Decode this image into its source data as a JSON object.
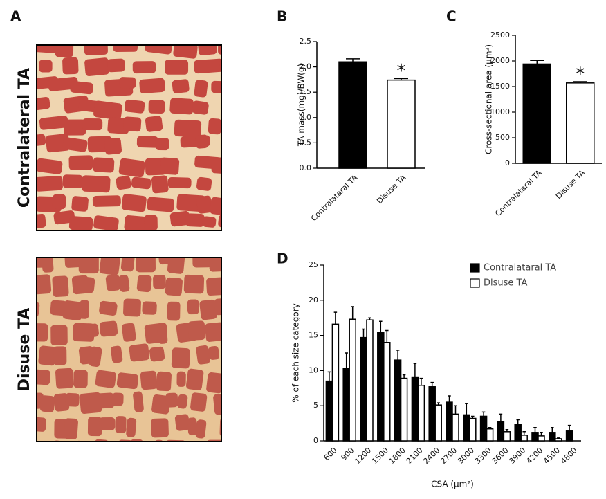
{
  "panel_a": {
    "title": "A",
    "images": [
      {
        "label": "Contralateral TA"
      },
      {
        "label": "Disuse TA"
      }
    ]
  },
  "chart_data": [
    {
      "type": "bar",
      "title": "B",
      "y_label": "TA mass(mg)/BW(g)",
      "categories": [
        "Contralataral TA",
        "Disuse TA"
      ],
      "values": [
        2.1,
        1.74
      ],
      "errors": [
        0.06,
        0.03
      ],
      "colors": [
        "#000000",
        "#ffffff"
      ],
      "annotation": "*",
      "ylim": [
        0,
        2.5
      ],
      "yticks": [
        {
          "value": 0,
          "label": "0.0"
        },
        0.5,
        {
          "value": 1,
          "label": "1.0"
        },
        1.5,
        {
          "value": 2,
          "label": "2.0"
        },
        2.5
      ]
    },
    {
      "type": "bar",
      "title": "C",
      "y_label": "Cross-sectional area (μm²)",
      "categories": [
        "Contralataral TA",
        "Disuse TA"
      ],
      "values": [
        1940,
        1570
      ],
      "errors": [
        70,
        25
      ],
      "colors": [
        "#000000",
        "#ffffff"
      ],
      "annotation": "*",
      "ylim": [
        0,
        2500
      ],
      "yticks": [
        0,
        500,
        1000,
        1500,
        2000,
        2500
      ]
    },
    {
      "type": "grouped_bar",
      "title": "D",
      "y_label": "% of each size category",
      "x_label": "CSA (μm²)",
      "categories": [
        "600",
        "900",
        "1200",
        "1500",
        "1800",
        "2100",
        "2400",
        "2700",
        "3000",
        "3300",
        "3600",
        "3900",
        "4200",
        "4500",
        "4800"
      ],
      "series": [
        {
          "name": "Contralataral TA",
          "color": "#000000",
          "values": [
            8.5,
            10.3,
            14.7,
            15.4,
            11.5,
            9.0,
            7.7,
            5.5,
            3.7,
            3.5,
            2.7,
            2.3,
            1.2,
            1.2,
            1.4
          ],
          "errors": [
            1.3,
            2.2,
            1.2,
            1.6,
            1.4,
            2.0,
            0.6,
            0.9,
            1.6,
            0.6,
            1.1,
            0.7,
            0.7,
            0.7,
            0.8
          ]
        },
        {
          "name": "Disuse TA",
          "color": "#ffffff",
          "values": [
            16.6,
            17.3,
            17.2,
            14.0,
            8.9,
            7.9,
            5.1,
            3.8,
            3.2,
            1.7,
            1.3,
            0.8,
            0.7,
            0.3,
            null
          ],
          "errors": [
            1.7,
            1.8,
            0.3,
            1.7,
            0.5,
            1.0,
            0.3,
            1.2,
            0.3,
            0.2,
            0.3,
            0.5,
            0.5,
            0.1,
            null
          ]
        }
      ],
      "ylim": [
        0,
        25
      ],
      "yticks": [
        0,
        5,
        10,
        15,
        20,
        25
      ],
      "legend": "top-right"
    }
  ]
}
